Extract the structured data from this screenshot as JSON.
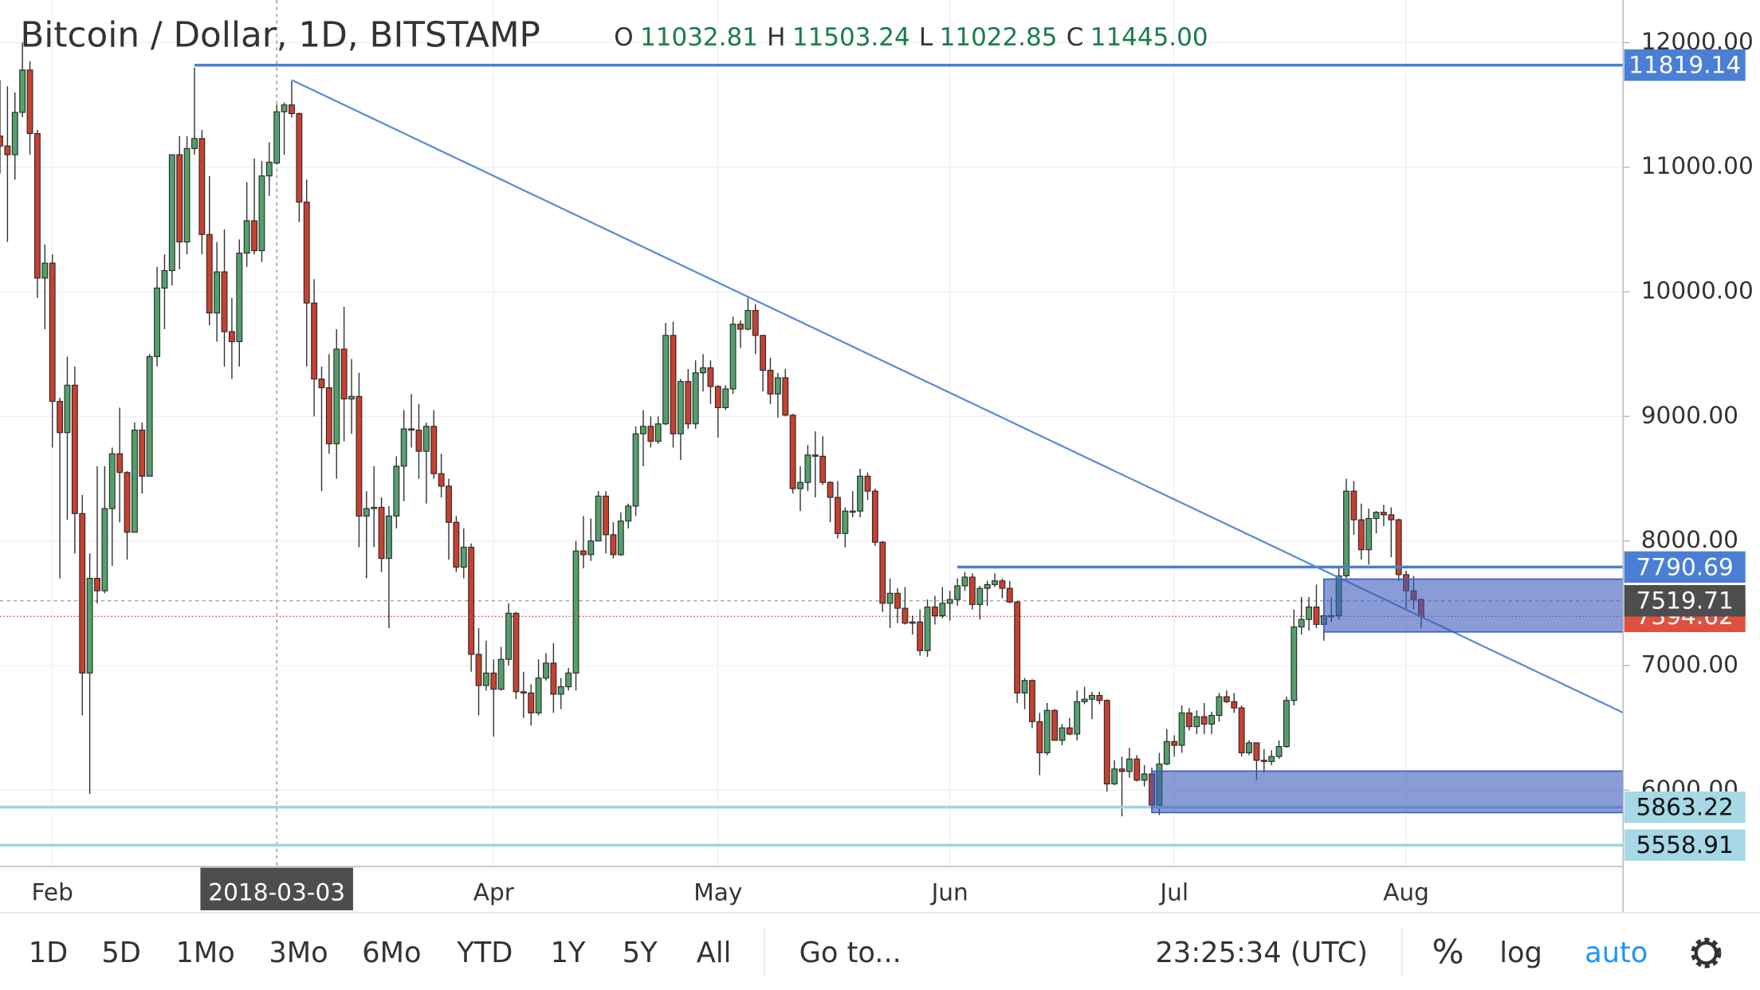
{
  "chart_data": {
    "type": "candlestick",
    "title": "Bitcoin / Dollar, 1D, BITSTAMP",
    "ohlc_legend": {
      "labels": [
        "O",
        "H",
        "L",
        "C"
      ],
      "values": [
        11032.81,
        11503.24,
        11022.85,
        11445
      ],
      "value_labels": [
        "11032.81",
        "11503.24",
        "11022.85",
        "11445.00"
      ]
    },
    "x": [
      "2018-01-25",
      "2018-01-26",
      "2018-01-27",
      "2018-01-28",
      "2018-01-29",
      "2018-01-30",
      "2018-01-31",
      "2018-02-01",
      "2018-02-02",
      "2018-02-03",
      "2018-02-04",
      "2018-02-05",
      "2018-02-06",
      "2018-02-07",
      "2018-02-08",
      "2018-02-09",
      "2018-02-10",
      "2018-02-11",
      "2018-02-12",
      "2018-02-13",
      "2018-02-14",
      "2018-02-15",
      "2018-02-16",
      "2018-02-17",
      "2018-02-18",
      "2018-02-19",
      "2018-02-20",
      "2018-02-21",
      "2018-02-22",
      "2018-02-23",
      "2018-02-24",
      "2018-02-25",
      "2018-02-26",
      "2018-02-27",
      "2018-02-28",
      "2018-03-01",
      "2018-03-02",
      "2018-03-03",
      "2018-03-04",
      "2018-03-05",
      "2018-03-06",
      "2018-03-07",
      "2018-03-08",
      "2018-03-09",
      "2018-03-10",
      "2018-03-11",
      "2018-03-12",
      "2018-03-13",
      "2018-03-14",
      "2018-03-15",
      "2018-03-16",
      "2018-03-17",
      "2018-03-18",
      "2018-03-19",
      "2018-03-20",
      "2018-03-21",
      "2018-03-22",
      "2018-03-23",
      "2018-03-24",
      "2018-03-25",
      "2018-03-26",
      "2018-03-27",
      "2018-03-28",
      "2018-03-29",
      "2018-03-30",
      "2018-03-31",
      "2018-04-01",
      "2018-04-02",
      "2018-04-03",
      "2018-04-04",
      "2018-04-05",
      "2018-04-06",
      "2018-04-07",
      "2018-04-08",
      "2018-04-09",
      "2018-04-10",
      "2018-04-11",
      "2018-04-12",
      "2018-04-13",
      "2018-04-14",
      "2018-04-15",
      "2018-04-16",
      "2018-04-17",
      "2018-04-18",
      "2018-04-19",
      "2018-04-20",
      "2018-04-21",
      "2018-04-22",
      "2018-04-23",
      "2018-04-24",
      "2018-04-25",
      "2018-04-26",
      "2018-04-27",
      "2018-04-28",
      "2018-04-29",
      "2018-04-30",
      "2018-05-01",
      "2018-05-02",
      "2018-05-03",
      "2018-05-04",
      "2018-05-05",
      "2018-05-06",
      "2018-05-07",
      "2018-05-08",
      "2018-05-09",
      "2018-05-10",
      "2018-05-11",
      "2018-05-12",
      "2018-05-13",
      "2018-05-14",
      "2018-05-15",
      "2018-05-16",
      "2018-05-17",
      "2018-05-18",
      "2018-05-19",
      "2018-05-20",
      "2018-05-21",
      "2018-05-22",
      "2018-05-23",
      "2018-05-24",
      "2018-05-25",
      "2018-05-26",
      "2018-05-27",
      "2018-05-28",
      "2018-05-29",
      "2018-05-30",
      "2018-05-31",
      "2018-06-01",
      "2018-06-02",
      "2018-06-03",
      "2018-06-04",
      "2018-06-05",
      "2018-06-06",
      "2018-06-07",
      "2018-06-08",
      "2018-06-09",
      "2018-06-10",
      "2018-06-11",
      "2018-06-12",
      "2018-06-13",
      "2018-06-14",
      "2018-06-15",
      "2018-06-16",
      "2018-06-17",
      "2018-06-18",
      "2018-06-19",
      "2018-06-20",
      "2018-06-21",
      "2018-06-22",
      "2018-06-23",
      "2018-06-24",
      "2018-06-25",
      "2018-06-26",
      "2018-06-27",
      "2018-06-28",
      "2018-06-29",
      "2018-06-30",
      "2018-07-01",
      "2018-07-02",
      "2018-07-03",
      "2018-07-04",
      "2018-07-05",
      "2018-07-06",
      "2018-07-07",
      "2018-07-08",
      "2018-07-09",
      "2018-07-10",
      "2018-07-11",
      "2018-07-12",
      "2018-07-13",
      "2018-07-14",
      "2018-07-15",
      "2018-07-16",
      "2018-07-17",
      "2018-07-18",
      "2018-07-19",
      "2018-07-20",
      "2018-07-21",
      "2018-07-22",
      "2018-07-23",
      "2018-07-24",
      "2018-07-25",
      "2018-07-26",
      "2018-07-27",
      "2018-07-28",
      "2018-07-29",
      "2018-07-30",
      "2018-07-31",
      "2018-08-01",
      "2018-08-02",
      "2018-08-03"
    ],
    "open": [
      11250,
      11170,
      11100,
      11440,
      11780,
      11270,
      10110,
      10230,
      9120,
      8870,
      9250,
      8220,
      6940,
      7700,
      7600,
      8260,
      8700,
      8550,
      8070,
      8890,
      8520,
      9480,
      10030,
      10170,
      11100,
      10400,
      11150,
      11230,
      10460,
      9830,
      10160,
      9680,
      9600,
      10310,
      10570,
      10330,
      10930,
      11032.81,
      11445,
      11500,
      11430,
      10720,
      9910,
      9300,
      9230,
      8780,
      9540,
      9140,
      9160,
      8200,
      8260,
      8270,
      7860,
      8200,
      8600,
      8900,
      8890,
      8720,
      8920,
      8540,
      8440,
      8150,
      7790,
      7950,
      7090,
      6840,
      6940,
      6810,
      7050,
      7420,
      6790,
      6780,
      6620,
      6900,
      7020,
      6770,
      6830,
      6940,
      7920,
      7890,
      8000,
      8360,
      8050,
      7890,
      8160,
      8280,
      8860,
      8920,
      8800,
      8940,
      9650,
      8860,
      9280,
      8940,
      9350,
      9390,
      9240,
      9070,
      9220,
      9740,
      9700,
      9850,
      9650,
      9370,
      9180,
      9310,
      9010,
      8420,
      8470,
      8690,
      8680,
      8470,
      8350,
      8060,
      8240,
      8240,
      8520,
      8400,
      7990,
      7500,
      7580,
      7460,
      7340,
      7350,
      7120,
      7470,
      7400,
      7500,
      7530,
      7640,
      7710,
      7490,
      7620,
      7650,
      7680,
      7620,
      7510,
      6780,
      6880,
      6550,
      6300,
      6640,
      6400,
      6500,
      6450,
      6710,
      6730,
      6760,
      6720,
      6050,
      6170,
      6150,
      6250,
      6080,
      6130,
      5880,
      6210,
      6390,
      6360,
      6620,
      6510,
      6590,
      6530,
      6600,
      6750,
      6710,
      6660,
      6300,
      6380,
      6240,
      6230,
      6270,
      6350,
      6720,
      7310,
      7370,
      7470,
      7330,
      7400,
      7400,
      7720,
      8400,
      8170,
      7930,
      8180,
      8230,
      8210,
      8170,
      7730,
      7600,
      7530
    ],
    "high": [
      11700,
      11650,
      11600,
      12000,
      11850,
      11300,
      10380,
      10300,
      9150,
      9480,
      9400,
      8370,
      7900,
      8600,
      8600,
      8750,
      9070,
      8560,
      8950,
      8950,
      9500,
      10200,
      10300,
      11100,
      11250,
      11250,
      11800,
      11300,
      10930,
      10400,
      10500,
      9950,
      10420,
      10880,
      11070,
      11050,
      11200,
      11503.24,
      11520,
      11690,
      11440,
      10900,
      10100,
      9400,
      9500,
      9700,
      9880,
      9460,
      9350,
      8400,
      8600,
      8350,
      8280,
      8680,
      9050,
      9180,
      9100,
      8950,
      9050,
      8700,
      8500,
      8200,
      8100,
      7980,
      7300,
      7200,
      7050,
      7150,
      7500,
      7430,
      6950,
      6850,
      7050,
      7100,
      7180,
      6900,
      6980,
      8000,
      8200,
      8180,
      8400,
      8400,
      8150,
      8230,
      8300,
      8920,
      9050,
      9000,
      9000,
      9750,
      9760,
      9300,
      9380,
      9450,
      9500,
      9450,
      9250,
      9250,
      9800,
      9770,
      9950,
      9900,
      9650,
      9470,
      9350,
      9380,
      9020,
      8600,
      8770,
      8880,
      8840,
      8480,
      8480,
      8270,
      8400,
      8580,
      8550,
      8420,
      8000,
      7700,
      7620,
      7630,
      7400,
      7450,
      7530,
      7560,
      7630,
      7600,
      7700,
      7750,
      7740,
      7640,
      7680,
      7740,
      7700,
      7680,
      7520,
      6900,
      6890,
      6620,
      6700,
      6650,
      6530,
      6580,
      6800,
      6830,
      6790,
      6790,
      6730,
      6240,
      6270,
      6340,
      6280,
      6200,
      6180,
      6300,
      6490,
      6440,
      6680,
      6660,
      6640,
      6700,
      6630,
      6780,
      6800,
      6780,
      6680,
      6400,
      6380,
      6330,
      6320,
      6400,
      6750,
      7450,
      7550,
      7550,
      7650,
      7450,
      7550,
      7780,
      8500,
      8480,
      8300,
      8260,
      8240,
      8290,
      8270,
      8180,
      7760,
      7720,
      7540
    ],
    "low": [
      10950,
      10400,
      10900,
      11400,
      11100,
      9950,
      9700,
      8750,
      7700,
      8170,
      7900,
      6600,
      5970,
      7500,
      7580,
      7800,
      8150,
      7850,
      8070,
      8380,
      8520,
      9400,
      9700,
      10050,
      10180,
      10300,
      11100,
      10300,
      9730,
      9600,
      9400,
      9300,
      9400,
      10200,
      10300,
      10240,
      10770,
      11022.85,
      11100,
      11400,
      10560,
      9400,
      9000,
      8400,
      8700,
      8500,
      8800,
      8860,
      7950,
      7700,
      7950,
      7750,
      7300,
      8100,
      8320,
      8750,
      8500,
      8300,
      8500,
      8350,
      7850,
      7750,
      7700,
      6950,
      6600,
      6800,
      6430,
      6800,
      7000,
      6730,
      6580,
      6520,
      6600,
      6880,
      6620,
      6650,
      6800,
      6800,
      7780,
      7840,
      8000,
      7900,
      7860,
      7880,
      8100,
      8200,
      8600,
      8750,
      8780,
      8930,
      8750,
      8650,
      8900,
      8900,
      9200,
      9100,
      8830,
      9050,
      9180,
      9550,
      9690,
      9500,
      9200,
      9100,
      8990,
      9000,
      8380,
      8240,
      8400,
      8350,
      8450,
      8150,
      8020,
      7950,
      8190,
      8190,
      8330,
      7960,
      7430,
      7300,
      7340,
      7330,
      7250,
      7080,
      7070,
      7330,
      7380,
      7360,
      7480,
      7600,
      7450,
      7370,
      7480,
      7630,
      7540,
      7500,
      6700,
      6650,
      6500,
      6120,
      6280,
      6400,
      6360,
      6440,
      6400,
      6690,
      6570,
      6690,
      5990,
      6040,
      5790,
      6100,
      6070,
      6030,
      5830,
      5800,
      6200,
      6270,
      6300,
      6480,
      6450,
      6450,
      6450,
      6550,
      6700,
      6620,
      6270,
      6280,
      6080,
      6140,
      6200,
      6250,
      6340,
      6680,
      7250,
      7280,
      7300,
      7200,
      7350,
      7370,
      7700,
      8050,
      7850,
      7810,
      8060,
      8120,
      7870,
      7680,
      7450,
      7450,
      7300
    ],
    "close": [
      11170,
      11100,
      11440,
      11780,
      11270,
      10110,
      10230,
      9120,
      8870,
      9250,
      8220,
      6940,
      7700,
      7600,
      8260,
      8700,
      8550,
      8070,
      8890,
      8520,
      9480,
      10030,
      10170,
      11100,
      10400,
      11150,
      11230,
      10460,
      9830,
      10160,
      9680,
      9600,
      10310,
      10570,
      10330,
      10930,
      11040,
      11445,
      11500,
      11430,
      10720,
      9910,
      9300,
      9230,
      8780,
      9540,
      9140,
      9160,
      8200,
      8260,
      8270,
      7860,
      8200,
      8600,
      8900,
      8890,
      8720,
      8920,
      8540,
      8440,
      8150,
      7790,
      7950,
      7090,
      6840,
      6940,
      6810,
      7050,
      7420,
      6790,
      6780,
      6620,
      6900,
      7020,
      6770,
      6830,
      6940,
      7920,
      7890,
      8000,
      8360,
      8050,
      7890,
      8160,
      8280,
      8860,
      8920,
      8800,
      8940,
      9650,
      8860,
      9280,
      8940,
      9350,
      9390,
      9240,
      9070,
      9220,
      9740,
      9700,
      9850,
      9650,
      9370,
      9180,
      9310,
      9010,
      8420,
      8470,
      8690,
      8680,
      8470,
      8350,
      8060,
      8240,
      8240,
      8520,
      8400,
      7990,
      7500,
      7580,
      7460,
      7340,
      7350,
      7120,
      7470,
      7400,
      7500,
      7530,
      7640,
      7710,
      7490,
      7620,
      7650,
      7680,
      7620,
      7510,
      6780,
      6880,
      6550,
      6300,
      6640,
      6400,
      6500,
      6450,
      6710,
      6730,
      6760,
      6720,
      6050,
      6170,
      6150,
      6250,
      6080,
      6130,
      5880,
      6210,
      6390,
      6360,
      6620,
      6510,
      6590,
      6530,
      6600,
      6750,
      6710,
      6660,
      6300,
      6380,
      6240,
      6230,
      6270,
      6350,
      6720,
      7310,
      7370,
      7470,
      7330,
      7400,
      7400,
      7720,
      8400,
      8170,
      7930,
      8180,
      8230,
      8210,
      8170,
      7730,
      7600,
      7530,
      7394.62
    ],
    "up_color": "#53a06b",
    "down_color": "#c8402f",
    "xlim": [
      "2018-01-25",
      "2018-08-30"
    ],
    "xticks": [
      {
        "value": "2018-02-01",
        "label": "Feb"
      },
      {
        "value": "2018-04-01",
        "label": "Apr"
      },
      {
        "value": "2018-05-01",
        "label": "May"
      },
      {
        "value": "2018-06-01",
        "label": "Jun"
      },
      {
        "value": "2018-07-01",
        "label": "Jul"
      },
      {
        "value": "2018-08-01",
        "label": "Aug"
      }
    ],
    "ylim": [
      5387,
      12342
    ],
    "yticks": [
      {
        "value": 6000,
        "label": "6000.00"
      },
      {
        "value": 7000,
        "label": "7000.00"
      },
      {
        "value": 8000,
        "label": "8000.00"
      },
      {
        "value": 9000,
        "label": "9000.00"
      },
      {
        "value": 10000,
        "label": "10000.00"
      },
      {
        "value": 11000,
        "label": "11000.00"
      },
      {
        "value": 12000,
        "label": "12000.00"
      }
    ],
    "grid": true,
    "crosshair": {
      "date": "2018-03-03",
      "price": 7519.71
    },
    "last_price": 7394.62,
    "horizontal_lines": [
      {
        "price": 11819.14,
        "from": "2018-02-20",
        "color": "#4a7fd4"
      },
      {
        "price": 7790.69,
        "from": "2018-06-02",
        "color": "#4a7fd4"
      },
      {
        "price": 5863.22,
        "color": "#9fd3e3"
      },
      {
        "price": 5558.91,
        "color": "#9fd3e3"
      }
    ],
    "trend_line": {
      "from": [
        "2018-03-05",
        11700
      ],
      "to": [
        "2018-08-30",
        6622
      ],
      "color": "#5b8bd8"
    },
    "boxes": [
      {
        "from": "2018-07-21",
        "top": 7694,
        "bottom": 7270
      },
      {
        "from": "2018-06-28",
        "top": 6153,
        "bottom": 5820
      }
    ]
  },
  "toolbar": {
    "ranges": [
      "1D",
      "5D",
      "1Mo",
      "3Mo",
      "6Mo",
      "YTD",
      "1Y",
      "5Y",
      "All"
    ],
    "goto": "Go to...",
    "clock": "23:25:34 (UTC)",
    "percent": "%",
    "log": "log",
    "auto": "auto"
  }
}
